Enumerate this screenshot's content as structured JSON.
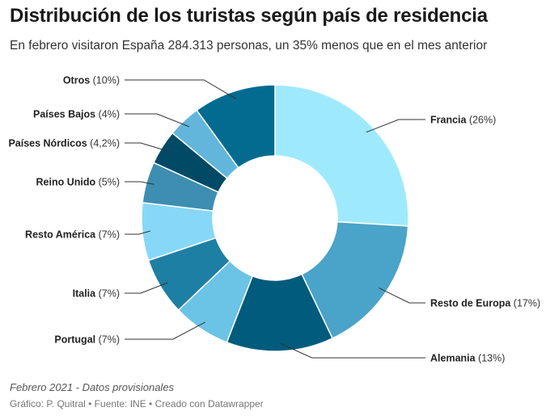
{
  "header": {
    "title": "Distribución de los turistas según país de residencia",
    "subtitle": "En febrero visitaron España 284.313 personas, un 35% menos que en el mes anterior"
  },
  "footer": {
    "note": "Febrero 2021 - Datos provisionales",
    "credits": "Gráfico: P. Quitral • Fuente: INE • Creado con Datawrapper"
  },
  "chart_data": {
    "type": "pie",
    "variant": "donut",
    "categories": [
      "Francia",
      "Resto de Europa",
      "Alemania",
      "Portugal",
      "Italia",
      "Resto América",
      "Reino Unido",
      "Países Nórdicos",
      "Países Bajos",
      "Otros"
    ],
    "values": [
      26,
      17,
      13,
      7,
      7,
      7,
      5,
      4.2,
      4,
      10
    ],
    "value_labels": [
      "(26%)",
      "(17%)",
      "(13%)",
      "(7%)",
      "(7%)",
      "(7%)",
      "(5%)",
      "(4,2%)",
      "(4%)",
      "(10%)"
    ],
    "colors": [
      "#9eeafc",
      "#4aa3c8",
      "#005b7d",
      "#6bc3e6",
      "#1d7fa3",
      "#87d8f8",
      "#3d8eb1",
      "#004a66",
      "#62b6dc",
      "#036b90"
    ],
    "legend": "none",
    "labels": "outside"
  }
}
